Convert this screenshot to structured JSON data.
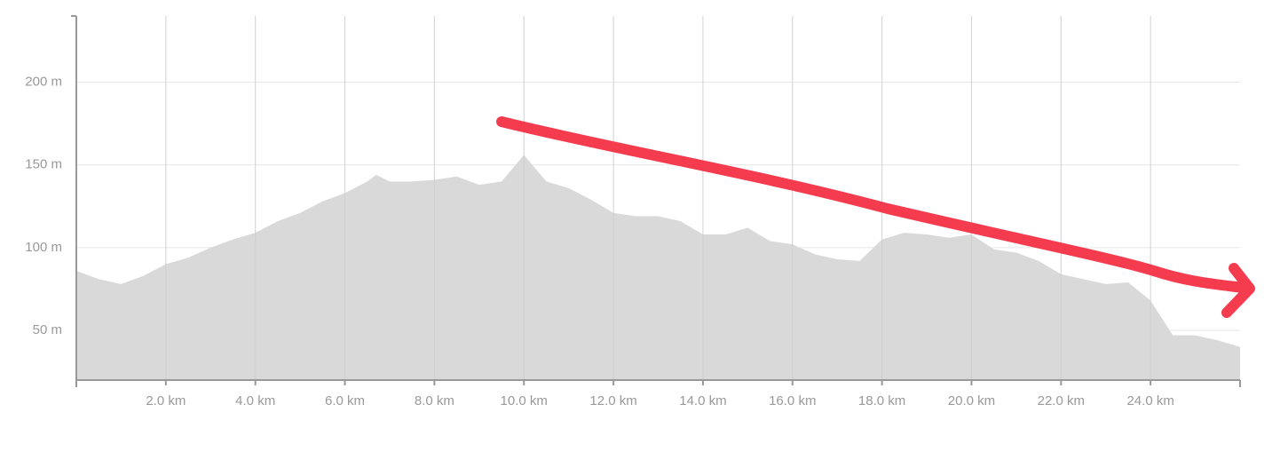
{
  "chart_data": {
    "type": "area",
    "x": [
      0,
      0.5,
      1.0,
      1.5,
      2.0,
      2.5,
      3.0,
      3.5,
      4.0,
      4.5,
      5.0,
      5.5,
      6.0,
      6.5,
      6.7,
      7.0,
      7.5,
      8.0,
      8.5,
      9.0,
      9.5,
      10.0,
      10.5,
      11.0,
      11.5,
      12.0,
      12.5,
      13.0,
      13.5,
      14.0,
      14.5,
      15.0,
      15.5,
      16.0,
      16.5,
      17.0,
      17.5,
      18.0,
      18.5,
      19.0,
      19.5,
      20.0,
      20.5,
      21.0,
      21.5,
      22.0,
      22.5,
      23.0,
      23.5,
      24.0,
      24.5,
      25.0,
      25.5,
      26.0
    ],
    "values": [
      86,
      81,
      78,
      83,
      90,
      94,
      100,
      105,
      109,
      116,
      121,
      128,
      133,
      140,
      144,
      140,
      140,
      141,
      143,
      138,
      140,
      156,
      140,
      136,
      129,
      121,
      119,
      119,
      116,
      108,
      108,
      112,
      104,
      102,
      96,
      93,
      92,
      105,
      109,
      108,
      106,
      108,
      99,
      97,
      92,
      84,
      81,
      78,
      79,
      68,
      47,
      47,
      44,
      40
    ],
    "color": "#d9d9d9",
    "xlim": [
      0,
      26
    ],
    "xticks": [
      {
        "value": 2,
        "label": "2.0 km"
      },
      {
        "value": 4,
        "label": "4.0 km"
      },
      {
        "value": 6,
        "label": "6.0 km"
      },
      {
        "value": 8,
        "label": "8.0 km"
      },
      {
        "value": 10,
        "label": "10.0 km"
      },
      {
        "value": 12,
        "label": "12.0 km"
      },
      {
        "value": 14,
        "label": "14.0 km"
      },
      {
        "value": 16,
        "label": "16.0 km"
      },
      {
        "value": 18,
        "label": "18.0 km"
      },
      {
        "value": 20,
        "label": "20.0 km"
      },
      {
        "value": 22,
        "label": "22.0 km"
      },
      {
        "value": 24,
        "label": "24.0 km"
      }
    ],
    "ylim": [
      20,
      240
    ],
    "yticks": [
      {
        "value": 50,
        "label": "50 m"
      },
      {
        "value": 100,
        "label": "100 m"
      },
      {
        "value": 150,
        "label": "150 m"
      },
      {
        "value": 200,
        "label": "200 m"
      }
    ],
    "grid": true
  }
}
